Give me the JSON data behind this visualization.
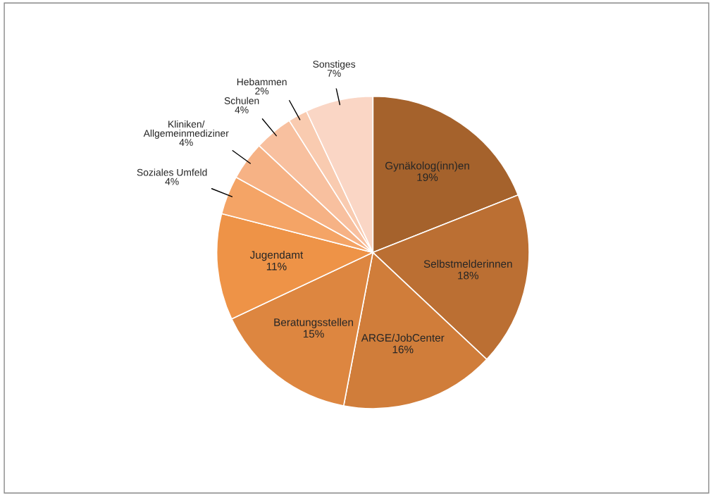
{
  "chart_data": {
    "type": "pie",
    "categories": [
      "Gynäkolog(inn)en",
      "Selbstmelderinnen",
      "ARGE/JobCenter",
      "Beratungsstellen",
      "Jugendamt",
      "Soziales Umfeld",
      "Kliniken/\nAllgemeinmediziner",
      "Schulen",
      "Hebammen",
      "Sonstiges"
    ],
    "values": [
      19,
      18,
      16,
      15,
      11,
      4,
      4,
      4,
      2,
      7
    ],
    "value_labels": [
      "19%",
      "18%",
      "16%",
      "15%",
      "11%",
      "4%",
      "4%",
      "4%",
      "2%",
      "7%"
    ],
    "colors": [
      "#a5622c",
      "#bb6f33",
      "#d07d3a",
      "#dd8640",
      "#ee9347",
      "#f4a466",
      "#f6b285",
      "#f8c09f",
      "#f9cbb0",
      "#fad6c5"
    ],
    "legend": false
  }
}
